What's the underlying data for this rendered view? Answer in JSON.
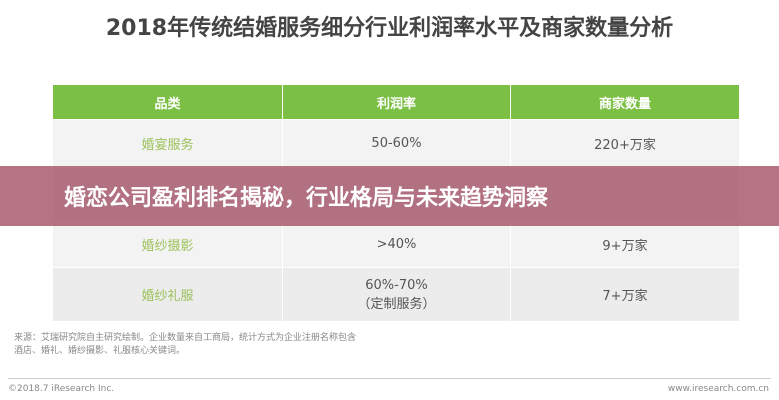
{
  "header": {
    "title": "2018年传统结婚服务细分行业利润率水平及商家数量分析"
  },
  "table": {
    "columns": [
      "品类",
      "利润率",
      "商家数量"
    ],
    "rows": [
      [
        "婚宴服务",
        [
          "50-60%"
        ],
        "220+万家"
      ],
      [
        "婚纱摄影",
        [
          ">40%"
        ],
        "9+万家"
      ],
      [
        "婚纱礼服",
        [
          "60%-70%",
          "（定制服务）"
        ],
        "7+万家"
      ]
    ]
  },
  "note": {
    "lines": [
      "来源：艾瑞研究院自主研究绘制。企业数量来自工商局，统计方式为企业注册名称包含",
      "酒店、婚礼、婚纱摄影、礼服核心关键词。"
    ]
  },
  "footer": {
    "copyright": "©2018.7 iResearch Inc.",
    "site": "www.iresearch.com.cn"
  },
  "banner": {
    "text": "婚恋公司盈利排名揭秘，行业格局与未来趋势洞察"
  }
}
